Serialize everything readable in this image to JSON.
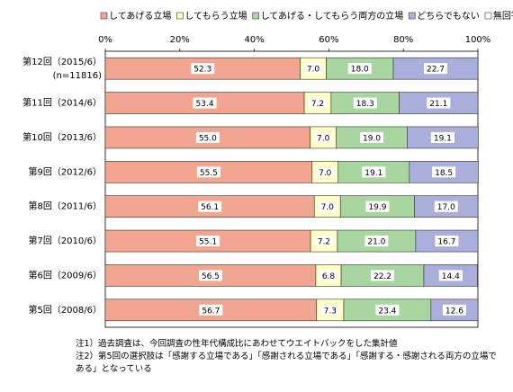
{
  "chart_data": {
    "type": "stacked-bar-horizontal",
    "categories": [
      "第12回（2015/6）",
      "第11回（2014/6）",
      "第10回（2013/6）",
      "第9回（2012/6）",
      "第8回（2011/6）",
      "第7回（2010/6）",
      "第6回（2009/6）",
      "第5回（2008/6）"
    ],
    "sample_label": "(n=11816)",
    "series": [
      {
        "name": "してあげる立場",
        "color": "#f2a591",
        "values": [
          52.3,
          53.4,
          55.0,
          55.5,
          56.1,
          55.1,
          56.5,
          56.7
        ],
        "value_labels": [
          "52.3",
          "53.4",
          "55.0",
          "55.5",
          "56.1",
          "55.1",
          "56.5",
          "56.7"
        ]
      },
      {
        "name": "してもらう立場",
        "color": "#ffffc4",
        "values": [
          7.0,
          7.2,
          7.0,
          7.0,
          7.0,
          7.2,
          6.8,
          7.3
        ],
        "value_labels": [
          "7.0",
          "7.2",
          "7.0",
          "7.0",
          "7.0",
          "7.2",
          "6.8",
          "7.3"
        ]
      },
      {
        "name": "してあげる・してもらう両方の立場",
        "color": "#a9d6a0",
        "values": [
          18.0,
          18.3,
          19.0,
          19.1,
          19.9,
          21.0,
          22.2,
          23.4
        ],
        "value_labels": [
          "18.0",
          "18.3",
          "19.0",
          "19.1",
          "19.9",
          "21.0",
          "22.2",
          "23.4"
        ]
      },
      {
        "name": "どちらでもない",
        "color": "#aaaedb",
        "values": [
          22.7,
          21.1,
          19.1,
          18.5,
          17.0,
          16.7,
          14.4,
          12.6
        ],
        "value_labels": [
          "22.7",
          "21.1",
          "19.1",
          "18.5",
          "17.0",
          "16.7",
          "14.4",
          "12.6"
        ]
      },
      {
        "name": "無回答",
        "color": "#ffffff",
        "values": [
          0,
          0,
          0,
          0,
          0,
          0,
          0.1,
          0
        ]
      }
    ],
    "xlim": [
      0,
      100
    ],
    "xticks": [
      {
        "value": 0,
        "label": "0%"
      },
      {
        "value": 20,
        "label": "20%"
      },
      {
        "value": 40,
        "label": "40%"
      },
      {
        "value": 60,
        "label": "60%"
      },
      {
        "value": 80,
        "label": "80%"
      },
      {
        "value": 100,
        "label": "100%"
      }
    ],
    "grid": false,
    "notes": [
      "注1）過去調査は、今回調査の性年代構成比にあわせてウエイトバックをした集計値",
      "注2）第5回の選択肢は「感謝する立場である」「感謝される立場である」「感謝する・感謝される両方の立場である」となっている"
    ]
  }
}
